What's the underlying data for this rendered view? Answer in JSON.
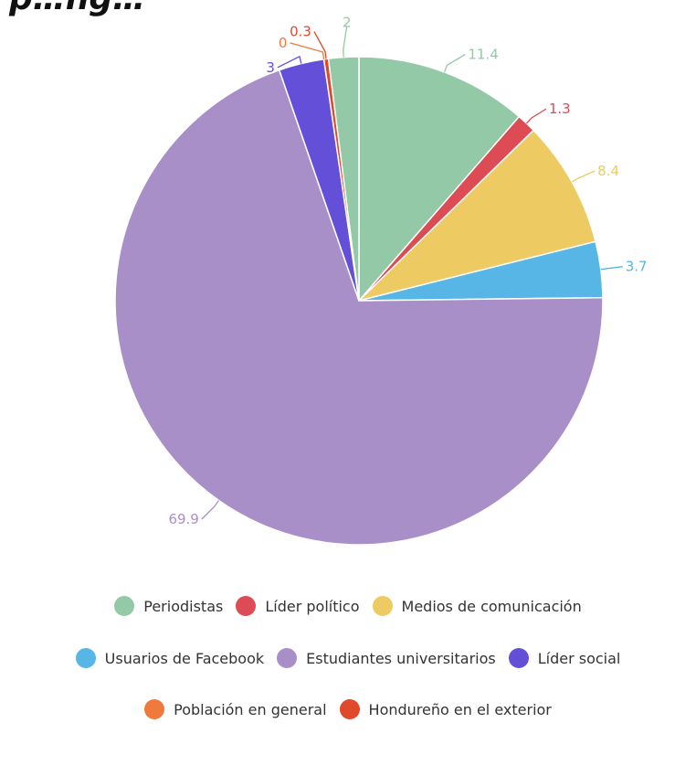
{
  "header": {
    "title_partial": "p…ng…"
  },
  "chart_data": {
    "type": "pie",
    "start_angle_deg": 0,
    "direction": "clockwise",
    "slices": [
      {
        "name": "Periodistas",
        "value": 11.4,
        "label": "11.4",
        "color": "#93c9a6"
      },
      {
        "name": "Líder político",
        "value": 1.3,
        "label": "1.3",
        "color": "#dd4b55"
      },
      {
        "name": "Medios de comunicación",
        "value": 8.4,
        "label": "8.4",
        "color": "#eecb62"
      },
      {
        "name": "Usuarios de Facebook",
        "value": 3.7,
        "label": "3.7",
        "color": "#57b6e6"
      },
      {
        "name": "Estudiantes universitarios",
        "value": 69.9,
        "label": "69.9",
        "color": "#a98fc8"
      },
      {
        "name": "Líder social",
        "value": 3,
        "label": "3",
        "color": "#6450d8"
      },
      {
        "name": "Población en general",
        "value": 0,
        "label": "0",
        "color": "#f07a3c"
      },
      {
        "name": "Hondureño en el exterior",
        "value": 0.3,
        "label": "0.3",
        "color": "#e04a2a"
      },
      {
        "name": "",
        "value": 2,
        "label": "2",
        "color": "#93c9a6"
      }
    ]
  },
  "legend": {
    "rows": [
      [
        {
          "label": "Periodistas",
          "color": "#93c9a6"
        },
        {
          "label": "Líder político",
          "color": "#dd4b55"
        },
        {
          "label": "Medios de comunicación",
          "color": "#eecb62"
        }
      ],
      [
        {
          "label": "Usuarios de Facebook",
          "color": "#57b6e6"
        },
        {
          "label": "Estudiantes universitarios",
          "color": "#a98fc8"
        },
        {
          "label": "Líder social",
          "color": "#6450d8"
        }
      ],
      [
        {
          "label": "Población en general",
          "color": "#f07a3c"
        },
        {
          "label": "Hondureño en el exterior",
          "color": "#e04a2a"
        }
      ]
    ]
  }
}
